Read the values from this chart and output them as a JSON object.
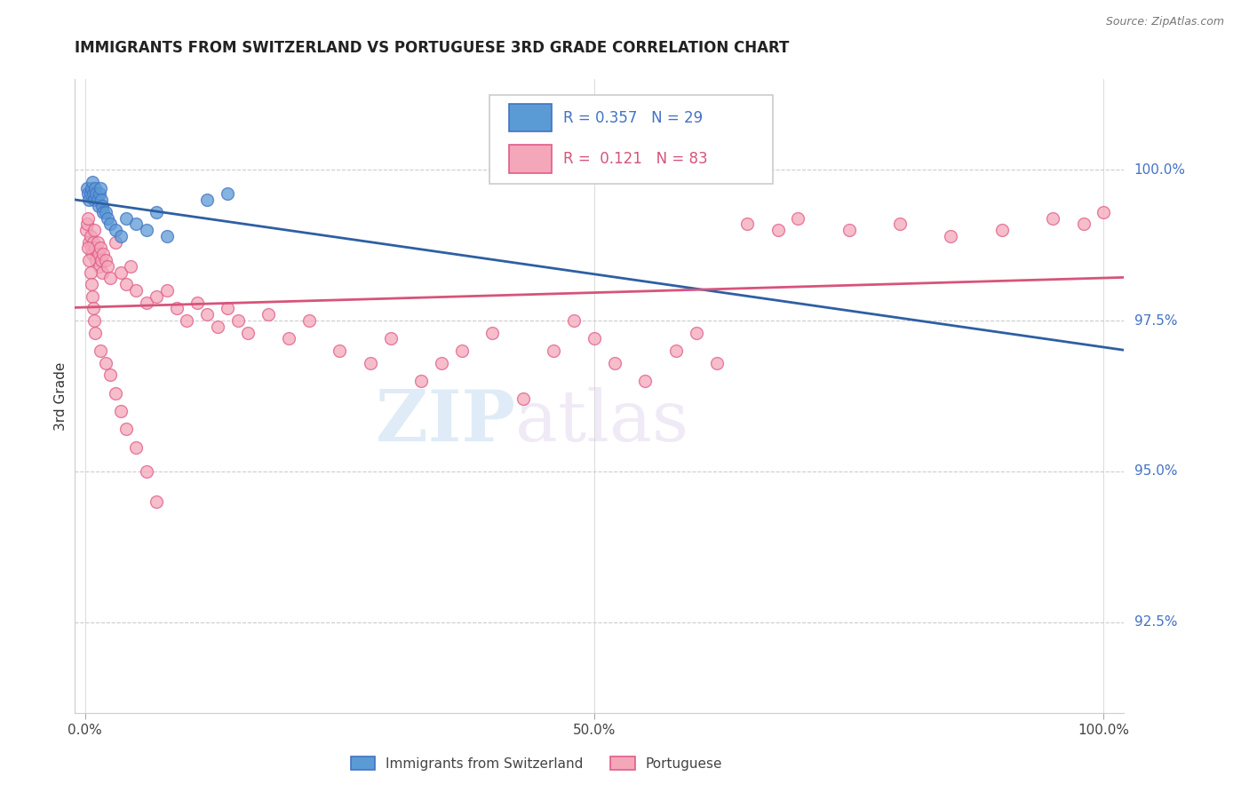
{
  "title": "IMMIGRANTS FROM SWITZERLAND VS PORTUGUESE 3RD GRADE CORRELATION CHART",
  "source": "Source: ZipAtlas.com",
  "ylabel": "3rd Grade",
  "xlim": [
    -1.0,
    102.0
  ],
  "ylim": [
    91.0,
    101.5
  ],
  "yticks": [
    92.5,
    95.0,
    97.5,
    100.0
  ],
  "ytick_labels": [
    "92.5%",
    "95.0%",
    "97.5%",
    "100.0%"
  ],
  "xtick_positions": [
    0,
    50,
    100
  ],
  "xtick_labels": [
    "0.0%",
    "50.0%",
    "100.0%"
  ],
  "blue_color": "#5b9bd5",
  "blue_edge": "#4472c4",
  "pink_color": "#f4a7b9",
  "pink_edge": "#e05c8a",
  "blue_line_color": "#2e5fa3",
  "pink_line_color": "#d6547a",
  "legend_blue_r": "R = 0.357",
  "legend_blue_n": "N = 29",
  "legend_pink_r": "R =  0.121",
  "legend_pink_n": "N = 83",
  "watermark_zip": "ZIP",
  "watermark_atlas": "atlas",
  "background_color": "#ffffff",
  "grid_color": "#cccccc",
  "blue_x": [
    0.2,
    0.3,
    0.4,
    0.5,
    0.6,
    0.7,
    0.8,
    0.9,
    1.0,
    1.1,
    1.2,
    1.3,
    1.4,
    1.5,
    1.6,
    1.7,
    1.8,
    2.0,
    2.2,
    2.5,
    3.0,
    3.5,
    4.0,
    5.0,
    6.0,
    7.0,
    8.0,
    12.0,
    14.0
  ],
  "blue_y": [
    99.7,
    99.6,
    99.5,
    99.6,
    99.7,
    99.8,
    99.6,
    99.5,
    99.7,
    99.6,
    99.5,
    99.4,
    99.6,
    99.7,
    99.5,
    99.4,
    99.3,
    99.3,
    99.2,
    99.1,
    99.0,
    98.9,
    99.2,
    99.1,
    99.0,
    99.3,
    98.9,
    99.5,
    99.6
  ],
  "pink_x": [
    0.1,
    0.2,
    0.3,
    0.4,
    0.5,
    0.6,
    0.7,
    0.8,
    0.9,
    1.0,
    1.1,
    1.2,
    1.3,
    1.4,
    1.5,
    1.6,
    1.7,
    1.8,
    2.0,
    2.2,
    2.5,
    3.0,
    3.5,
    4.0,
    4.5,
    5.0,
    6.0,
    7.0,
    8.0,
    9.0,
    10.0,
    11.0,
    12.0,
    13.0,
    14.0,
    15.0,
    16.0,
    18.0,
    20.0,
    22.0,
    25.0,
    28.0,
    30.0,
    33.0,
    35.0,
    37.0,
    40.0,
    43.0,
    46.0,
    48.0,
    50.0,
    52.0,
    55.0,
    58.0,
    60.0,
    62.0,
    65.0,
    68.0,
    70.0,
    75.0,
    80.0,
    85.0,
    90.0,
    95.0,
    98.0,
    100.0,
    0.3,
    0.4,
    0.5,
    0.6,
    0.7,
    0.8,
    0.9,
    1.0,
    1.5,
    2.0,
    2.5,
    3.0,
    3.5,
    4.0,
    5.0,
    6.0,
    7.0
  ],
  "pink_y": [
    99.0,
    99.1,
    99.2,
    98.8,
    98.9,
    98.7,
    98.6,
    98.8,
    99.0,
    98.7,
    98.5,
    98.8,
    98.6,
    98.4,
    98.7,
    98.5,
    98.3,
    98.6,
    98.5,
    98.4,
    98.2,
    98.8,
    98.3,
    98.1,
    98.4,
    98.0,
    97.8,
    97.9,
    98.0,
    97.7,
    97.5,
    97.8,
    97.6,
    97.4,
    97.7,
    97.5,
    97.3,
    97.6,
    97.2,
    97.5,
    97.0,
    96.8,
    97.2,
    96.5,
    96.8,
    97.0,
    97.3,
    96.2,
    97.0,
    97.5,
    97.2,
    96.8,
    96.5,
    97.0,
    97.3,
    96.8,
    99.1,
    99.0,
    99.2,
    99.0,
    99.1,
    98.9,
    99.0,
    99.2,
    99.1,
    99.3,
    98.7,
    98.5,
    98.3,
    98.1,
    97.9,
    97.7,
    97.5,
    97.3,
    97.0,
    96.8,
    96.6,
    96.3,
    96.0,
    95.7,
    95.4,
    95.0,
    94.5
  ]
}
